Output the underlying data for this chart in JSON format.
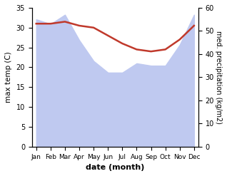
{
  "months": [
    "Jan",
    "Feb",
    "Mar",
    "Apr",
    "May",
    "Jun",
    "Jul",
    "Aug",
    "Sep",
    "Oct",
    "Nov",
    "Dec"
  ],
  "temp_max": [
    31.0,
    31.0,
    31.5,
    30.5,
    30.0,
    28.0,
    26.0,
    24.5,
    24.0,
    24.5,
    27.0,
    30.5
  ],
  "precip": [
    55.0,
    53.0,
    57.0,
    46.0,
    37.0,
    32.0,
    32.0,
    36.0,
    35.0,
    35.0,
    44.0,
    57.0
  ],
  "temp_color": "#c0392b",
  "precip_fill_color": "#bfc9f0",
  "temp_ylim": [
    0,
    35
  ],
  "precip_ylim": [
    0,
    60
  ],
  "temp_yticks": [
    0,
    5,
    10,
    15,
    20,
    25,
    30,
    35
  ],
  "precip_yticks": [
    0,
    10,
    20,
    30,
    40,
    50,
    60
  ],
  "xlabel": "date (month)",
  "ylabel_left": "max temp (C)",
  "ylabel_right": "med. precipitation (kg/m2)",
  "background_color": "#ffffff"
}
